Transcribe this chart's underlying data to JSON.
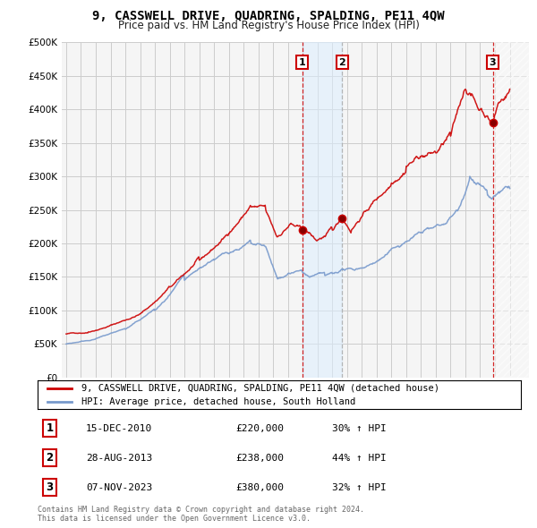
{
  "title": "9, CASSWELL DRIVE, QUADRING, SPALDING, PE11 4QW",
  "subtitle": "Price paid vs. HM Land Registry's House Price Index (HPI)",
  "ylabel_ticks": [
    "£0",
    "£50K",
    "£100K",
    "£150K",
    "£200K",
    "£250K",
    "£300K",
    "£350K",
    "£400K",
    "£450K",
    "£500K"
  ],
  "ytick_values": [
    0,
    50000,
    100000,
    150000,
    200000,
    250000,
    300000,
    350000,
    400000,
    450000,
    500000
  ],
  "ylim": [
    0,
    500000
  ],
  "xlim_start": 1994.7,
  "xlim_end": 2026.3,
  "red_color": "#cc0000",
  "blue_color": "#7799cc",
  "shade_color": "#ddeeff",
  "grid_color": "#cccccc",
  "background_color": "#f5f5f5",
  "sale1_x": 2010.96,
  "sale1_y": 220000,
  "sale2_x": 2013.66,
  "sale2_y": 238000,
  "sale3_x": 2023.85,
  "sale3_y": 380000,
  "legend_line1": "9, CASSWELL DRIVE, QUADRING, SPALDING, PE11 4QW (detached house)",
  "legend_line2": "HPI: Average price, detached house, South Holland",
  "table_data": [
    [
      "1",
      "15-DEC-2010",
      "£220,000",
      "30% ↑ HPI"
    ],
    [
      "2",
      "28-AUG-2013",
      "£238,000",
      "44% ↑ HPI"
    ],
    [
      "3",
      "07-NOV-2023",
      "£380,000",
      "32% ↑ HPI"
    ]
  ],
  "footnote1": "Contains HM Land Registry data © Crown copyright and database right 2024.",
  "footnote2": "This data is licensed under the Open Government Licence v3.0."
}
